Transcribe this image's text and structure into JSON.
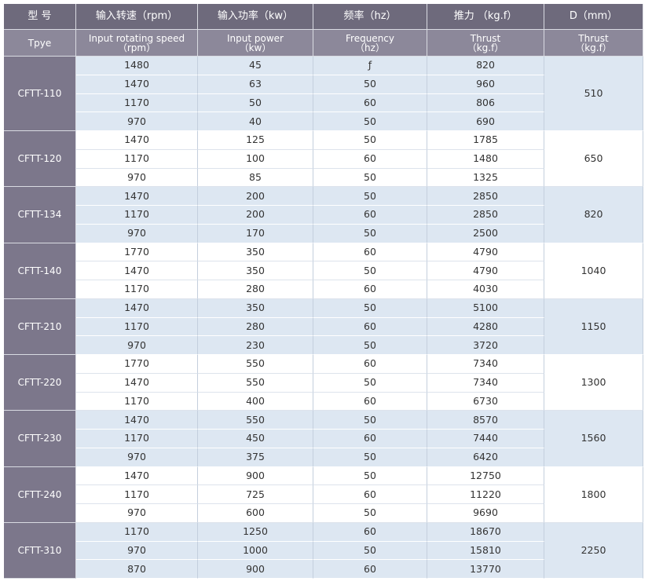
{
  "header": {
    "top": [
      "型 号",
      "输入转速（rpm）",
      "输入功率（kw）",
      "频率（hz）",
      "推力 （kg.f）",
      "D（mm）"
    ],
    "sub": [
      [
        "Tpye"
      ],
      [
        "Input rotating speed",
        "（rpm）"
      ],
      [
        "Input power",
        "（kw）"
      ],
      [
        "Frequency",
        "（hz）"
      ],
      [
        "Thrust",
        "（kg.f）"
      ],
      [
        "Thrust",
        "（kg.f）"
      ]
    ]
  },
  "groups": [
    {
      "type": "CFTT-110",
      "d": 510,
      "rows": [
        [
          1480,
          45,
          "ƒ",
          820
        ],
        [
          1470,
          63,
          50,
          960
        ],
        [
          1170,
          50,
          60,
          806
        ],
        [
          970,
          40,
          50,
          690
        ]
      ]
    },
    {
      "type": "CFTT-120",
      "d": 650,
      "rows": [
        [
          1470,
          125,
          50,
          1785
        ],
        [
          1170,
          100,
          60,
          1480
        ],
        [
          970,
          85,
          50,
          1325
        ]
      ]
    },
    {
      "type": "CFTT-134",
      "d": 820,
      "rows": [
        [
          1470,
          200,
          50,
          2850
        ],
        [
          1170,
          200,
          60,
          2850
        ],
        [
          970,
          170,
          50,
          2500
        ]
      ]
    },
    {
      "type": "CFTT-140",
      "d": 1040,
      "rows": [
        [
          1770,
          350,
          60,
          4790
        ],
        [
          1470,
          350,
          50,
          4790
        ],
        [
          1170,
          280,
          60,
          4030
        ]
      ]
    },
    {
      "type": "CFTT-210",
      "d": 1150,
      "rows": [
        [
          1470,
          350,
          50,
          5100
        ],
        [
          1170,
          280,
          60,
          4280
        ],
        [
          970,
          230,
          50,
          3720
        ]
      ]
    },
    {
      "type": "CFTT-220",
      "d": 1300,
      "rows": [
        [
          1770,
          550,
          60,
          7340
        ],
        [
          1470,
          550,
          50,
          7340
        ],
        [
          1170,
          400,
          60,
          6730
        ]
      ]
    },
    {
      "type": "CFTT-230",
      "d": 1560,
      "rows": [
        [
          1470,
          550,
          50,
          8570
        ],
        [
          1170,
          450,
          60,
          7440
        ],
        [
          970,
          375,
          50,
          6420
        ]
      ]
    },
    {
      "type": "CFTT-240",
      "d": 1800,
      "rows": [
        [
          1470,
          900,
          50,
          12750
        ],
        [
          1170,
          725,
          60,
          11220
        ],
        [
          970,
          600,
          50,
          9690
        ]
      ]
    },
    {
      "type": "CFTT-310",
      "d": 2250,
      "rows": [
        [
          1170,
          1250,
          60,
          18670
        ],
        [
          970,
          1000,
          50,
          15810
        ],
        [
          870,
          900,
          60,
          13770
        ]
      ]
    }
  ]
}
